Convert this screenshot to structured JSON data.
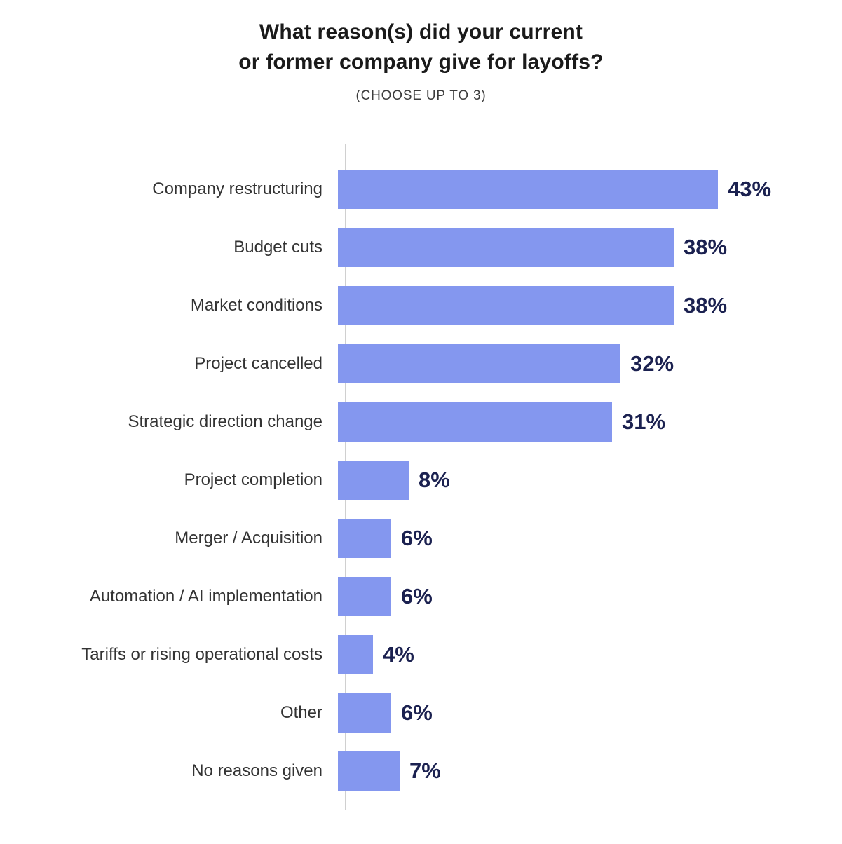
{
  "header": {
    "title_line1": "What reason(s) did your current",
    "title_line2": "or former company give for layoffs?",
    "subtitle": "(CHOOSE UP TO 3)"
  },
  "colors": {
    "bar": "#8497EF",
    "value_label": "#1B2150",
    "category_label": "#333333",
    "axis": "#D0D0D0",
    "title": "#1A1A1A",
    "background": "#FFFFFF"
  },
  "chart_data": {
    "type": "bar",
    "orientation": "horizontal",
    "title": "What reason(s) did your current or former company give for layoffs?",
    "subtitle": "(CHOOSE UP TO 3)",
    "unit": "%",
    "categories": [
      "Company restructuring",
      "Budget cuts",
      "Market conditions",
      "Project cancelled",
      "Strategic direction change",
      "Project completion",
      "Merger / Acquisition",
      "Automation / AI implementation",
      "Tariffs or rising operational costs",
      "Other",
      "No reasons given"
    ],
    "values": [
      43,
      38,
      38,
      32,
      31,
      8,
      6,
      6,
      4,
      6,
      7
    ],
    "value_labels": [
      "43%",
      "38%",
      "38%",
      "32%",
      "31%",
      "8%",
      "6%",
      "6%",
      "4%",
      "6%",
      "7%"
    ],
    "xlim": [
      0,
      45
    ],
    "grid": false,
    "legend": false,
    "sorted_descending_until_other": true
  }
}
